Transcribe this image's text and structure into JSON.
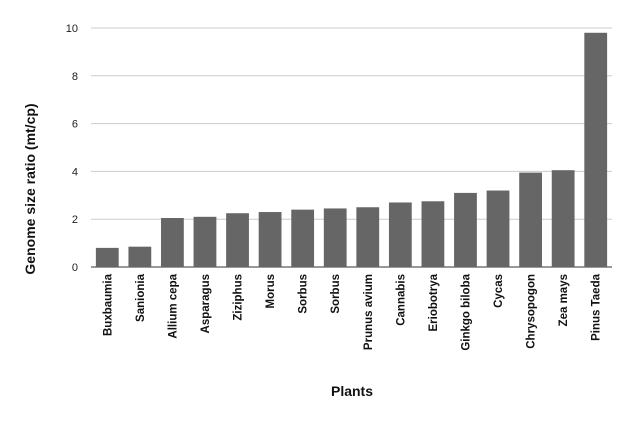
{
  "chart_data": {
    "type": "bar",
    "title": "",
    "xlabel": "Plants",
    "ylabel": "Genome size ratio (mt/cp)",
    "categories": [
      "Buxbaumia",
      "Sanionia",
      "Allium cepa",
      "Asparagus",
      "Ziziphus",
      "Morus",
      "Sorbus",
      "Sorbus",
      "Prunus avium",
      "Cannabis",
      "Eriobotrya",
      "Ginkgo biloba",
      "Cycas",
      "Chrysopogon",
      "Zea mays",
      "Pinus Taeda"
    ],
    "values": [
      0.8,
      0.85,
      2.05,
      2.1,
      2.25,
      2.3,
      2.4,
      2.45,
      2.5,
      2.7,
      2.75,
      3.1,
      3.2,
      3.95,
      4.05,
      9.8
    ],
    "yticks": [
      "0",
      "2",
      "4",
      "6",
      "8",
      "10"
    ],
    "ylim": [
      0,
      10
    ],
    "grid": true,
    "legend": "none",
    "bar_color": "#666666"
  }
}
